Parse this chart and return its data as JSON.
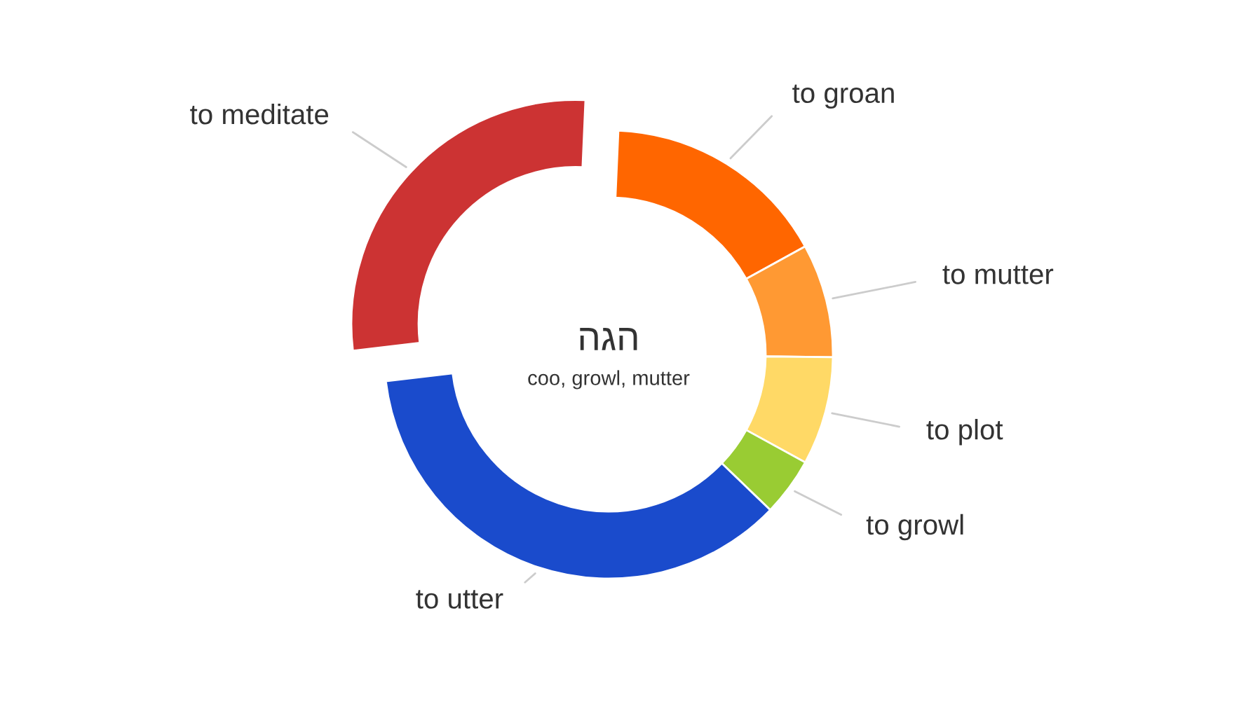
{
  "chart_data": {
    "type": "donut",
    "title": "הגה",
    "subtitle": "coo, growl, mutter",
    "categories": [
      "to groan",
      "to mutter",
      "to plot",
      "to growl",
      "to utter",
      "to meditate"
    ],
    "values": [
      16.3,
      8.2,
      7.8,
      4.2,
      35.9,
      27.6
    ],
    "colors": [
      "#ff6600",
      "#ff9933",
      "#ffd966",
      "#99cc33",
      "#1a4bcc",
      "#cc3333"
    ]
  }
}
